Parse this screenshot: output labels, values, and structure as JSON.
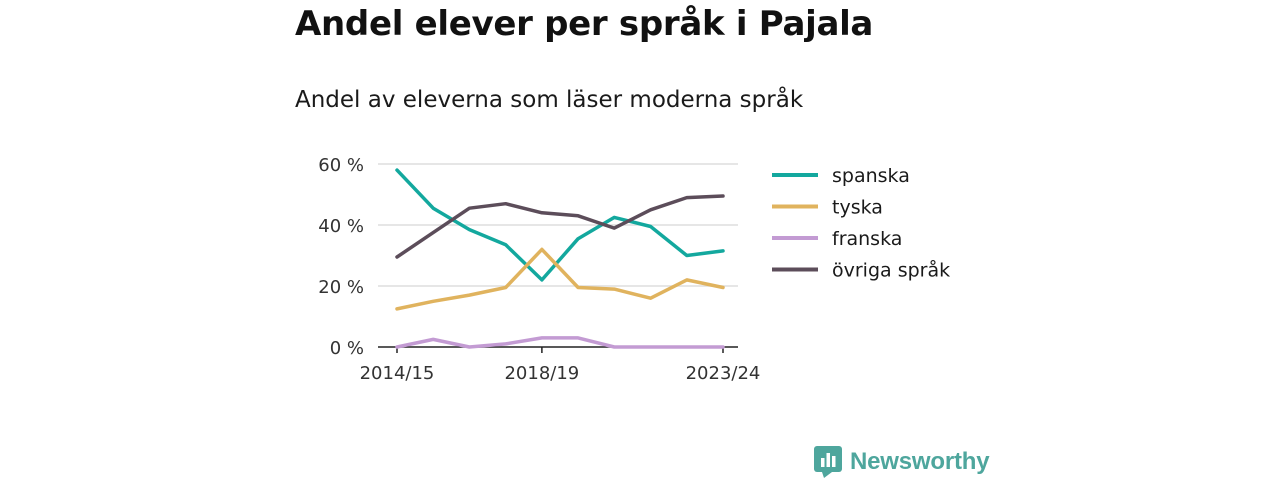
{
  "title": "Andel elever per språk i Pajala",
  "subtitle": "Andel av eleverna som läser moderna språk",
  "brand": {
    "name": "Newsworthy",
    "icon": "newsworthy-logo-icon"
  },
  "chart_data": {
    "type": "line",
    "x": [
      "2014/15",
      "2015/16",
      "2016/17",
      "2017/18",
      "2018/19",
      "2019/20",
      "2020/21",
      "2021/22",
      "2022/23",
      "2023/24"
    ],
    "xticks": [
      "2014/15",
      "2018/19",
      "2023/24"
    ],
    "yticks": [
      "0 %",
      "20 %",
      "40 %",
      "60 %"
    ],
    "ylim": [
      0,
      60
    ],
    "grid": true,
    "legend_position": "right",
    "series": [
      {
        "name": "spanska",
        "color": "#13a89e",
        "values": [
          58,
          45.5,
          38.5,
          33.5,
          22,
          35.5,
          42.5,
          39.5,
          30,
          31.5
        ]
      },
      {
        "name": "tyska",
        "color": "#e0b35e",
        "values": [
          12.5,
          15,
          17,
          19.5,
          32,
          19.5,
          19,
          16,
          22,
          19.5
        ]
      },
      {
        "name": "franska",
        "color": "#c39bd3",
        "values": [
          0,
          2.5,
          0,
          1,
          3,
          3,
          0,
          0,
          0,
          0
        ]
      },
      {
        "name": "övriga språk",
        "color": "#5c4d5a",
        "values": [
          29.5,
          37.5,
          45.5,
          47,
          44,
          43,
          39,
          45,
          49,
          49.5
        ]
      }
    ]
  }
}
